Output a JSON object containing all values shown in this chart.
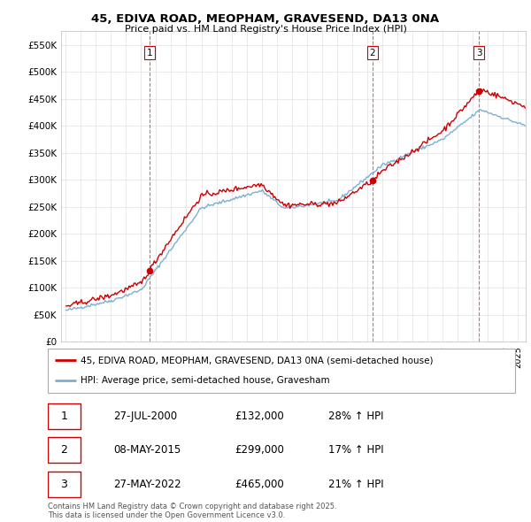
{
  "title": "45, EDIVA ROAD, MEOPHAM, GRAVESEND, DA13 0NA",
  "subtitle": "Price paid vs. HM Land Registry's House Price Index (HPI)",
  "legend_line1": "45, EDIVA ROAD, MEOPHAM, GRAVESEND, DA13 0NA (semi-detached house)",
  "legend_line2": "HPI: Average price, semi-detached house, Gravesham",
  "purchases": [
    {
      "num": 1,
      "date": "27-JUL-2000",
      "price": 132000,
      "pct": "28%",
      "dir": "↑"
    },
    {
      "num": 2,
      "date": "08-MAY-2015",
      "price": 299000,
      "pct": "17%",
      "dir": "↑"
    },
    {
      "num": 3,
      "date": "27-MAY-2022",
      "price": 465000,
      "pct": "21%",
      "dir": "↑"
    }
  ],
  "purchase_dates_decimal": [
    2000.57,
    2015.35,
    2022.41
  ],
  "purchase_prices": [
    132000,
    299000,
    465000
  ],
  "red_color": "#cc0000",
  "blue_color": "#7bafd4",
  "vline_color": "#cc0000",
  "footer": "Contains HM Land Registry data © Crown copyright and database right 2025.\nThis data is licensed under the Open Government Licence v3.0.",
  "ylim": [
    0,
    575000
  ],
  "yticks": [
    0,
    50000,
    100000,
    150000,
    200000,
    250000,
    300000,
    350000,
    400000,
    450000,
    500000,
    550000
  ],
  "background_color": "#ffffff",
  "grid_color": "#e0e0e0"
}
